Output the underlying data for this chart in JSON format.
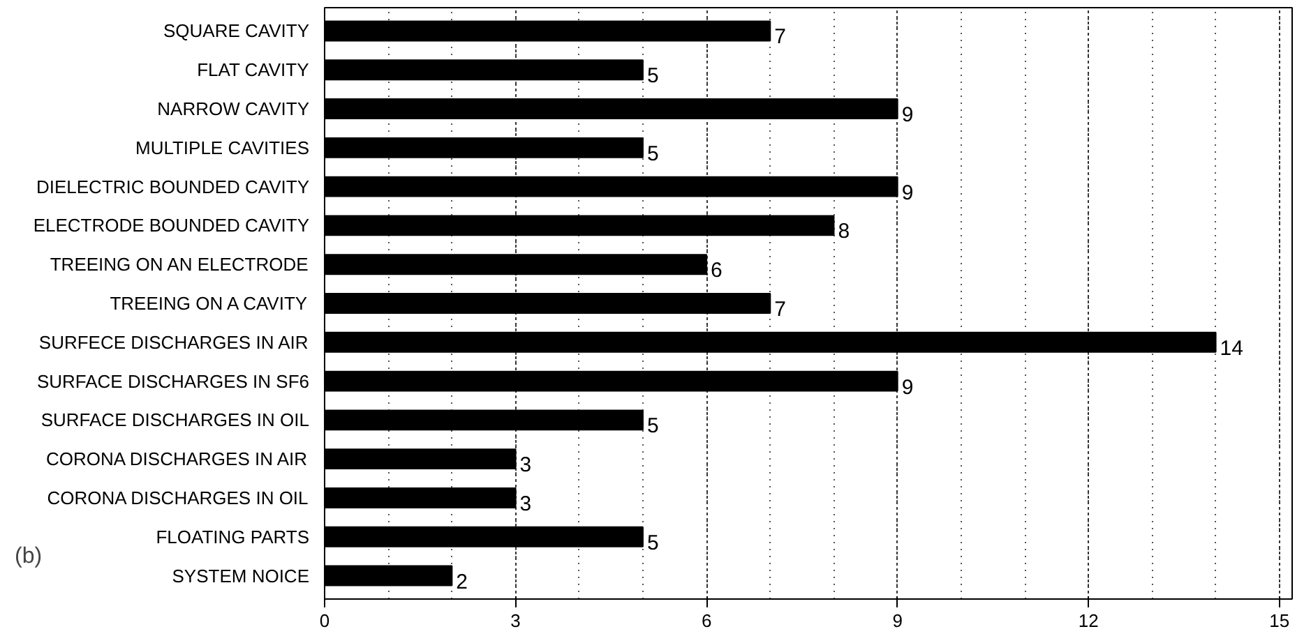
{
  "chart_data": {
    "type": "bar",
    "orientation": "horizontal",
    "categories": [
      "SQUARE CAVITY",
      "FLAT CAVITY",
      "NARROW CAVITY",
      "MULTIPLE CAVITIES",
      "DIELECTRIC BOUNDED CAVITY",
      "ELECTRODE BOUNDED CAVITY",
      "TREEING ON AN ELECTRODE",
      "TREEING ON A CAVITY",
      "SURFECE DISCHARGES IN AIR",
      "SURFACE DISCHARGES IN SF6",
      "SURFACE DISCHARGES IN OIL",
      "CORONA DISCHARGES IN AIR",
      "CORONA DISCHARGES IN OIL",
      "FLOATING PARTS",
      "SYSTEM NOICE"
    ],
    "values": [
      7,
      5,
      9,
      5,
      9,
      8,
      6,
      7,
      14,
      9,
      5,
      3,
      3,
      5,
      2
    ],
    "color": "#000000",
    "xlim": [
      0,
      15.2
    ],
    "xticks": [
      0,
      3,
      6,
      9,
      12,
      15
    ],
    "grid": "x",
    "data_labels": true,
    "annotations": [
      "(b)"
    ]
  }
}
